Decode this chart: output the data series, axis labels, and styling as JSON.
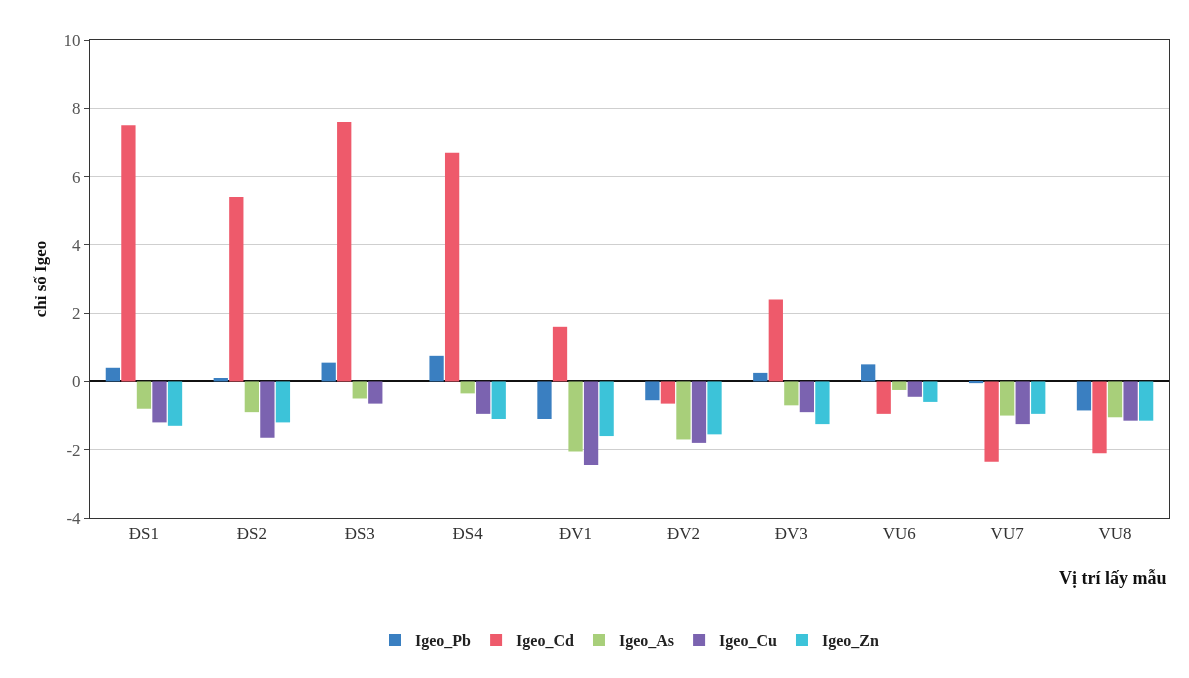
{
  "chart_data": {
    "type": "bar",
    "xlabel": "Vị trí lấy mẫu",
    "ylabel": "chỉ số Igeo",
    "categories": [
      "ĐS1",
      "ĐS2",
      "ĐS3",
      "ĐS4",
      "ĐV1",
      "ĐV2",
      "ĐV3",
      "VU6",
      "VU7",
      "VU8"
    ],
    "series": [
      {
        "name": "Igeo_Pb",
        "color": "#3a7fc1",
        "values": [
          0.4,
          0.1,
          0.55,
          0.75,
          -1.1,
          -0.55,
          0.25,
          0.5,
          -0.05,
          -0.85
        ]
      },
      {
        "name": "Igeo_Cd",
        "color": "#ee5a6b",
        "values": [
          7.5,
          5.4,
          7.6,
          6.7,
          1.6,
          -0.65,
          2.4,
          -0.95,
          -2.35,
          -2.1
        ]
      },
      {
        "name": "Igeo_As",
        "color": "#a8cf7a",
        "values": [
          -0.8,
          -0.9,
          -0.5,
          -0.35,
          -2.05,
          -1.7,
          -0.7,
          -0.25,
          -1.0,
          -1.05
        ]
      },
      {
        "name": "Igeo_Cu",
        "color": "#7b63b0",
        "values": [
          -1.2,
          -1.65,
          -0.65,
          -0.95,
          -2.45,
          -1.8,
          -0.9,
          -0.45,
          -1.25,
          -1.15
        ]
      },
      {
        "name": "Igeo_Zn",
        "color": "#3cc3d9",
        "values": [
          -1.3,
          -1.2,
          null,
          -1.1,
          -1.6,
          -1.55,
          -1.25,
          -0.6,
          -0.95,
          -1.15
        ]
      }
    ],
    "ylim": [
      -4,
      10
    ],
    "yticks": [
      -4,
      -2,
      0,
      2,
      4,
      6,
      8,
      10
    ],
    "grid": "y",
    "legend": "bottom"
  }
}
